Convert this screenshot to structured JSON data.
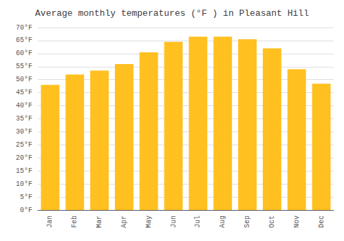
{
  "chart_data": {
    "type": "bar",
    "title": "Average monthly temperatures (°F ) in Pleasant Hill",
    "categories": [
      "Jan",
      "Feb",
      "Mar",
      "Apr",
      "May",
      "Jun",
      "Jul",
      "Aug",
      "Sep",
      "Oct",
      "Nov",
      "Dec"
    ],
    "values": [
      48,
      52,
      53.5,
      56,
      60.5,
      64.5,
      66.5,
      66.5,
      65.5,
      62,
      54,
      48.5
    ],
    "color": "#FFC020",
    "ylim": [
      0,
      70
    ],
    "yticks": [
      {
        "value": 0,
        "label": "0°F"
      },
      {
        "value": 5,
        "label": "5°F"
      },
      {
        "value": 10,
        "label": "10°F"
      },
      {
        "value": 15,
        "label": "15°F"
      },
      {
        "value": 20,
        "label": "20°F"
      },
      {
        "value": 25,
        "label": "25°F"
      },
      {
        "value": 30,
        "label": "30°F"
      },
      {
        "value": 35,
        "label": "35°F"
      },
      {
        "value": 40,
        "label": "40°F"
      },
      {
        "value": 45,
        "label": "45°F"
      },
      {
        "value": 50,
        "label": "50°F"
      },
      {
        "value": 55,
        "label": "55°F"
      },
      {
        "value": 60,
        "label": "60°F"
      },
      {
        "value": 65,
        "label": "65°F"
      },
      {
        "value": 70,
        "label": "70°F"
      }
    ],
    "grid": true
  }
}
